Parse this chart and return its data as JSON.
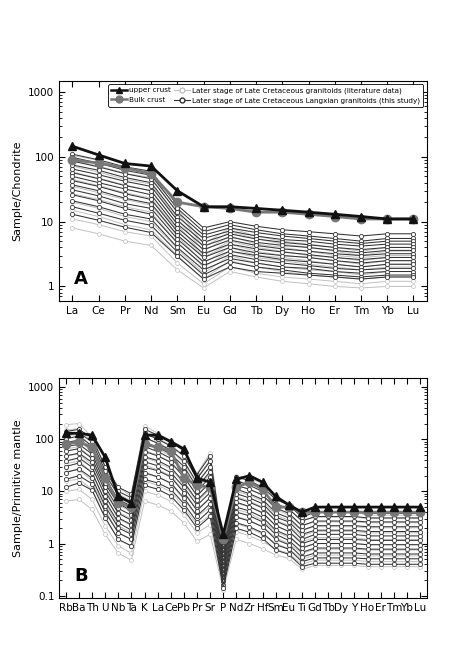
{
  "panel_A": {
    "x_labels": [
      "La",
      "Ce",
      "Pr",
      "Nd",
      "Sm",
      "Eu",
      "Gd",
      "Tb",
      "Dy",
      "Ho",
      "Er",
      "Tm",
      "Yb",
      "Lu"
    ],
    "ylabel": "Sample/Chondrite",
    "ylim": [
      0.6,
      1500
    ],
    "label": "A",
    "upper_crust": [
      146,
      107,
      79,
      72,
      30,
      17,
      17,
      16,
      15,
      14,
      13,
      12,
      11,
      11
    ],
    "bulk_crust": [
      90,
      80,
      68,
      55,
      20,
      17,
      16,
      14,
      14,
      13,
      12,
      11,
      11,
      11
    ],
    "lit_data": [
      [
        105,
        88,
        65,
        55,
        16,
        4.5,
        8,
        6,
        5,
        4.5,
        4,
        3.5,
        4,
        4
      ],
      [
        88,
        72,
        56,
        48,
        14,
        4,
        7,
        5.5,
        4.5,
        4,
        3.5,
        3,
        3.5,
        3.5
      ],
      [
        72,
        58,
        45,
        38,
        11,
        3.5,
        6,
        4.5,
        4,
        3.5,
        3,
        2.8,
        3,
        3
      ],
      [
        58,
        47,
        37,
        30,
        9,
        3,
        5,
        4,
        3.5,
        3,
        2.8,
        2.5,
        2.8,
        2.8
      ],
      [
        45,
        36,
        28,
        23,
        7.5,
        2.8,
        4.5,
        3.5,
        3,
        2.8,
        2.5,
        2.2,
        2.5,
        2.5
      ],
      [
        35,
        28,
        22,
        18,
        6,
        2.3,
        4,
        3,
        2.8,
        2.5,
        2.2,
        2,
        2.2,
        2.2
      ],
      [
        27,
        22,
        17,
        14,
        4.8,
        2,
        3.5,
        2.8,
        2.5,
        2.2,
        2,
        1.8,
        2,
        2
      ],
      [
        20,
        16,
        12,
        10,
        3.8,
        1.6,
        3,
        2.3,
        2,
        1.8,
        1.7,
        1.5,
        1.7,
        1.7
      ],
      [
        15,
        12,
        9,
        7.5,
        3,
        1.3,
        2.5,
        2,
        1.7,
        1.5,
        1.4,
        1.3,
        1.4,
        1.4
      ],
      [
        11,
        9,
        7,
        6,
        2.3,
        1.1,
        2,
        1.6,
        1.4,
        1.3,
        1.2,
        1.1,
        1.2,
        1.2
      ],
      [
        8,
        6.5,
        5,
        4.3,
        1.8,
        0.95,
        1.7,
        1.4,
        1.2,
        1.1,
        1.0,
        0.95,
        1.0,
        1.0
      ]
    ],
    "this_study": [
      [
        110,
        90,
        70,
        60,
        18,
        8,
        10,
        8.5,
        7.5,
        7,
        6.5,
        6,
        6.5,
        6.5
      ],
      [
        98,
        80,
        62,
        52,
        16,
        7,
        9,
        7.5,
        6.5,
        6,
        5.5,
        5,
        5.5,
        5.5
      ],
      [
        86,
        70,
        55,
        46,
        14,
        6.2,
        8,
        6.8,
        6,
        5.5,
        5,
        4.6,
        5,
        5
      ],
      [
        75,
        62,
        48,
        40,
        12,
        5.5,
        7.2,
        6,
        5.3,
        5,
        4.5,
        4.2,
        4.5,
        4.5
      ],
      [
        65,
        53,
        42,
        35,
        10.5,
        4.8,
        6.5,
        5.4,
        4.8,
        4.4,
        4,
        3.7,
        4,
        4
      ],
      [
        57,
        46,
        36,
        30,
        9.2,
        4.2,
        5.8,
        4.8,
        4.3,
        4,
        3.6,
        3.3,
        3.6,
        3.6
      ],
      [
        50,
        40,
        32,
        26,
        8,
        3.7,
        5.2,
        4.3,
        3.8,
        3.5,
        3.2,
        3,
        3.2,
        3.2
      ],
      [
        43,
        35,
        27,
        22,
        7,
        3.2,
        4.5,
        3.8,
        3.4,
        3.1,
        2.8,
        2.6,
        2.8,
        2.8
      ],
      [
        37,
        30,
        23,
        19,
        6.2,
        2.8,
        4,
        3.3,
        3,
        2.8,
        2.5,
        2.3,
        2.5,
        2.5
      ],
      [
        31,
        25,
        19,
        16,
        5.4,
        2.4,
        3.5,
        3,
        2.6,
        2.4,
        2.2,
        2,
        2.2,
        2.2
      ],
      [
        26,
        21,
        16,
        13,
        4.7,
        2.1,
        3.1,
        2.6,
        2.3,
        2.1,
        1.9,
        1.8,
        1.9,
        1.9
      ],
      [
        21,
        17,
        13,
        11,
        4,
        1.8,
        2.7,
        2.3,
        2,
        1.9,
        1.7,
        1.6,
        1.7,
        1.7
      ],
      [
        17,
        13.5,
        10.5,
        8.8,
        3.4,
        1.5,
        2.4,
        2,
        1.8,
        1.6,
        1.5,
        1.4,
        1.5,
        1.5
      ],
      [
        13,
        10.5,
        8.2,
        6.8,
        2.9,
        1.3,
        2,
        1.7,
        1.6,
        1.5,
        1.4,
        1.3,
        1.4,
        1.4
      ]
    ]
  },
  "panel_B": {
    "x_labels": [
      "Rb",
      "Ba",
      "Th",
      "U",
      "Nb",
      "Ta",
      "K",
      "La",
      "Ce",
      "Pb",
      "Pr",
      "Sr",
      "P",
      "Nd",
      "Zr",
      "Hf",
      "Sm",
      "Eu",
      "Ti",
      "Gd",
      "Tb",
      "Dy",
      "Y",
      "Ho",
      "Er",
      "Tm",
      "Yb",
      "Lu"
    ],
    "ylabel": "Sample/Primitive mantle",
    "ylim": [
      0.09,
      1500
    ],
    "label": "B",
    "upper_crust": [
      130,
      130,
      120,
      45,
      8,
      6,
      120,
      120,
      90,
      65,
      18,
      15,
      1.5,
      17,
      20,
      15,
      8,
      5.5,
      4,
      5,
      5,
      5,
      5,
      5,
      5,
      5,
      5,
      5
    ],
    "bulk_crust": [
      80,
      90,
      70,
      18,
      6,
      5,
      80,
      70,
      60,
      18,
      13,
      12,
      1.2,
      12,
      15,
      11,
      5,
      5,
      4,
      4,
      4,
      4,
      4,
      4,
      4,
      4,
      4,
      4
    ],
    "lit_data": [
      [
        190,
        200,
        110,
        28,
        12,
        8,
        180,
        130,
        95,
        65,
        22,
        55,
        1.0,
        20,
        18,
        14,
        7,
        5.5,
        3.5,
        4,
        4,
        4,
        4,
        3.5,
        3.5,
        3.5,
        3.5,
        3.5
      ],
      [
        150,
        160,
        90,
        22,
        9,
        6.5,
        140,
        105,
        78,
        48,
        18,
        40,
        0.8,
        16,
        14,
        11,
        5.5,
        4.5,
        2.8,
        3.2,
        3.2,
        3.2,
        3.2,
        3,
        3,
        3,
        3,
        3
      ],
      [
        115,
        125,
        72,
        18,
        7,
        5,
        110,
        82,
        62,
        35,
        14,
        30,
        0.6,
        13,
        11,
        8.5,
        4.5,
        3.5,
        2.2,
        2.6,
        2.6,
        2.6,
        2.6,
        2.5,
        2.5,
        2.5,
        2.5,
        2.5
      ],
      [
        88,
        95,
        56,
        14,
        5.5,
        4,
        85,
        64,
        48,
        26,
        11,
        22,
        0.5,
        10,
        8.5,
        6.5,
        3.5,
        2.8,
        1.8,
        2.1,
        2.1,
        2.1,
        2.1,
        2,
        2,
        2,
        2,
        2
      ],
      [
        65,
        72,
        43,
        11,
        4,
        3,
        62,
        49,
        37,
        19,
        8.5,
        16,
        0.4,
        8,
        6.5,
        5,
        2.8,
        2.2,
        1.4,
        1.7,
        1.7,
        1.7,
        1.7,
        1.6,
        1.6,
        1.6,
        1.6,
        1.6
      ],
      [
        48,
        52,
        32,
        8,
        3,
        2.2,
        45,
        36,
        27,
        14,
        6.3,
        11,
        0.32,
        6,
        5,
        3.8,
        2.2,
        1.7,
        1.1,
        1.3,
        1.3,
        1.3,
        1.3,
        1.2,
        1.2,
        1.2,
        1.2,
        1.2
      ],
      [
        34,
        38,
        23,
        6,
        2.2,
        1.6,
        32,
        26,
        20,
        10,
        4.5,
        7.5,
        0.26,
        4.5,
        3.8,
        2.8,
        1.7,
        1.3,
        0.85,
        1.0,
        1.0,
        1.0,
        1.0,
        0.95,
        0.95,
        0.95,
        0.95,
        0.95
      ],
      [
        24,
        26,
        16,
        4.5,
        1.6,
        1.2,
        22,
        19,
        14,
        7,
        3.3,
        5,
        0.22,
        3.3,
        2.8,
        2.1,
        1.3,
        1.0,
        0.65,
        0.78,
        0.78,
        0.78,
        0.78,
        0.75,
        0.75,
        0.75,
        0.75,
        0.75
      ],
      [
        16,
        17,
        11,
        3.2,
        1.2,
        0.9,
        16,
        13,
        10,
        5,
        2.3,
        3.5,
        0.18,
        2.4,
        2.0,
        1.5,
        1.0,
        0.8,
        0.5,
        0.6,
        0.6,
        0.6,
        0.6,
        0.58,
        0.58,
        0.58,
        0.58,
        0.58
      ],
      [
        10,
        11,
        7,
        2.2,
        0.9,
        0.65,
        10,
        8.5,
        6.5,
        3.5,
        1.6,
        2.3,
        0.15,
        1.7,
        1.4,
        1.1,
        0.78,
        0.65,
        0.4,
        0.48,
        0.48,
        0.48,
        0.48,
        0.45,
        0.45,
        0.45,
        0.45,
        0.45
      ],
      [
        6.5,
        7,
        4.5,
        1.5,
        0.65,
        0.48,
        6.5,
        5.5,
        4.2,
        2.5,
        1.1,
        1.5,
        0.13,
        1.2,
        1.0,
        0.8,
        0.6,
        0.52,
        0.32,
        0.38,
        0.38,
        0.38,
        0.38,
        0.36,
        0.36,
        0.36,
        0.36,
        0.36
      ]
    ],
    "this_study": [
      [
        140,
        155,
        105,
        30,
        12,
        9,
        155,
        120,
        88,
        60,
        21,
        48,
        0.9,
        19,
        16,
        12,
        7,
        5.5,
        3.2,
        4,
        4,
        4,
        4,
        3.8,
        3.8,
        3.8,
        3.8,
        3.8
      ],
      [
        120,
        135,
        88,
        25,
        10,
        7.5,
        130,
        100,
        74,
        48,
        17.5,
        38,
        0.75,
        16,
        13,
        10,
        5.8,
        4.6,
        2.7,
        3.3,
        3.3,
        3.3,
        3.3,
        3.1,
        3.1,
        3.1,
        3.1,
        3.1
      ],
      [
        102,
        115,
        74,
        21,
        8.5,
        6.2,
        108,
        84,
        62,
        38,
        14.5,
        30,
        0.62,
        13,
        11,
        8.5,
        4.8,
        3.8,
        2.2,
        2.7,
        2.7,
        2.7,
        2.7,
        2.6,
        2.6,
        2.6,
        2.6,
        2.6
      ],
      [
        86,
        96,
        62,
        17,
        7,
        5.2,
        88,
        70,
        52,
        30,
        12,
        24,
        0.52,
        11,
        9,
        7,
        3.9,
        3.1,
        1.8,
        2.2,
        2.2,
        2.2,
        2.2,
        2.1,
        2.1,
        2.1,
        2.1,
        2.1
      ],
      [
        72,
        80,
        52,
        14,
        5.8,
        4.3,
        72,
        58,
        43,
        24,
        10,
        19,
        0.44,
        9,
        7.5,
        5.8,
        3.2,
        2.6,
        1.5,
        1.8,
        1.8,
        1.8,
        1.8,
        1.7,
        1.7,
        1.7,
        1.7,
        1.7
      ],
      [
        59,
        66,
        43,
        12,
        4.7,
        3.5,
        58,
        48,
        36,
        19,
        8.2,
        15,
        0.37,
        7.5,
        6.2,
        4.8,
        2.7,
        2.1,
        1.2,
        1.5,
        1.5,
        1.5,
        1.5,
        1.4,
        1.4,
        1.4,
        1.4,
        1.4
      ],
      [
        48,
        54,
        36,
        10,
        3.8,
        2.8,
        46,
        39,
        29,
        15,
        6.7,
        12,
        0.31,
        6.2,
        5.1,
        3.9,
        2.2,
        1.7,
        1.0,
        1.2,
        1.2,
        1.2,
        1.2,
        1.15,
        1.15,
        1.15,
        1.15,
        1.15
      ],
      [
        38,
        44,
        29,
        8.2,
        3.1,
        2.3,
        37,
        31,
        23,
        12,
        5.4,
        9.5,
        0.26,
        5,
        4.2,
        3.2,
        1.8,
        1.4,
        0.82,
        1.0,
        1.0,
        1.0,
        1.0,
        0.95,
        0.95,
        0.95,
        0.95,
        0.95
      ],
      [
        30,
        35,
        23,
        6.5,
        2.5,
        1.8,
        29,
        25,
        19,
        9.5,
        4.3,
        7.5,
        0.22,
        4,
        3.4,
        2.6,
        1.5,
        1.15,
        0.68,
        0.82,
        0.82,
        0.82,
        0.82,
        0.78,
        0.78,
        0.78,
        0.78,
        0.78
      ],
      [
        23,
        27,
        18,
        5.2,
        2.0,
        1.5,
        23,
        19,
        14.5,
        7.5,
        3.4,
        5.8,
        0.19,
        3.2,
        2.7,
        2.1,
        1.2,
        0.95,
        0.55,
        0.66,
        0.66,
        0.66,
        0.66,
        0.63,
        0.63,
        0.63,
        0.63,
        0.63
      ],
      [
        17,
        20,
        14,
        4,
        1.6,
        1.2,
        17,
        14.5,
        11,
        5.8,
        2.6,
        4.4,
        0.16,
        2.5,
        2.1,
        1.6,
        0.95,
        0.78,
        0.45,
        0.53,
        0.53,
        0.53,
        0.53,
        0.51,
        0.51,
        0.51,
        0.51,
        0.51
      ],
      [
        12,
        14.5,
        10.5,
        3.1,
        1.2,
        0.9,
        13,
        11,
        8.2,
        4.4,
        2.0,
        3.3,
        0.14,
        1.95,
        1.65,
        1.25,
        0.75,
        0.62,
        0.36,
        0.42,
        0.42,
        0.42,
        0.42,
        0.4,
        0.4,
        0.4,
        0.4,
        0.4
      ]
    ]
  },
  "colors": {
    "upper_crust": "#111111",
    "bulk_crust": "#777777",
    "lit_data": "#c0c0c0",
    "this_study": "#333333"
  }
}
